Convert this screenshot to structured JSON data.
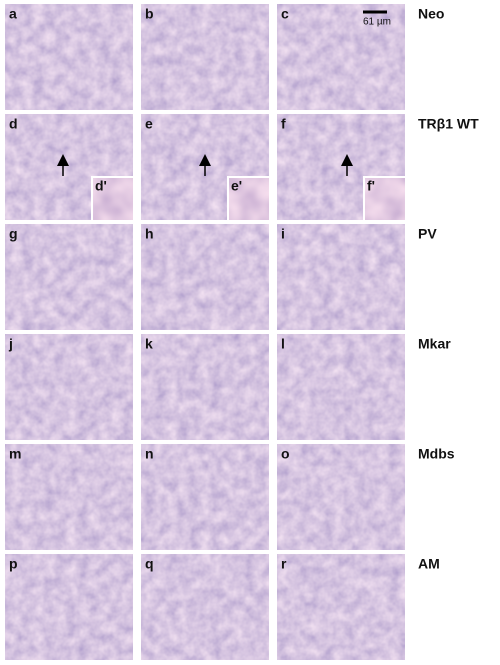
{
  "rows": [
    {
      "label": "Neo",
      "panels": [
        {
          "letter": "a"
        },
        {
          "letter": "b"
        },
        {
          "letter": "c",
          "scale_bar": "61 µm"
        }
      ]
    },
    {
      "label": "TRβ1 WT",
      "panels": [
        {
          "letter": "d",
          "inset": "d'"
        },
        {
          "letter": "e",
          "inset": "e'"
        },
        {
          "letter": "f",
          "inset": "f'"
        }
      ]
    },
    {
      "label": "PV",
      "panels": [
        {
          "letter": "g"
        },
        {
          "letter": "h"
        },
        {
          "letter": "i"
        }
      ]
    },
    {
      "label": "Mkar",
      "panels": [
        {
          "letter": "j"
        },
        {
          "letter": "k"
        },
        {
          "letter": "l"
        }
      ]
    },
    {
      "label": "Mdbs",
      "panels": [
        {
          "letter": "m"
        },
        {
          "letter": "n"
        },
        {
          "letter": "o"
        }
      ]
    },
    {
      "label": "AM",
      "panels": [
        {
          "letter": "p"
        },
        {
          "letter": "q"
        },
        {
          "letter": "r"
        }
      ]
    }
  ]
}
